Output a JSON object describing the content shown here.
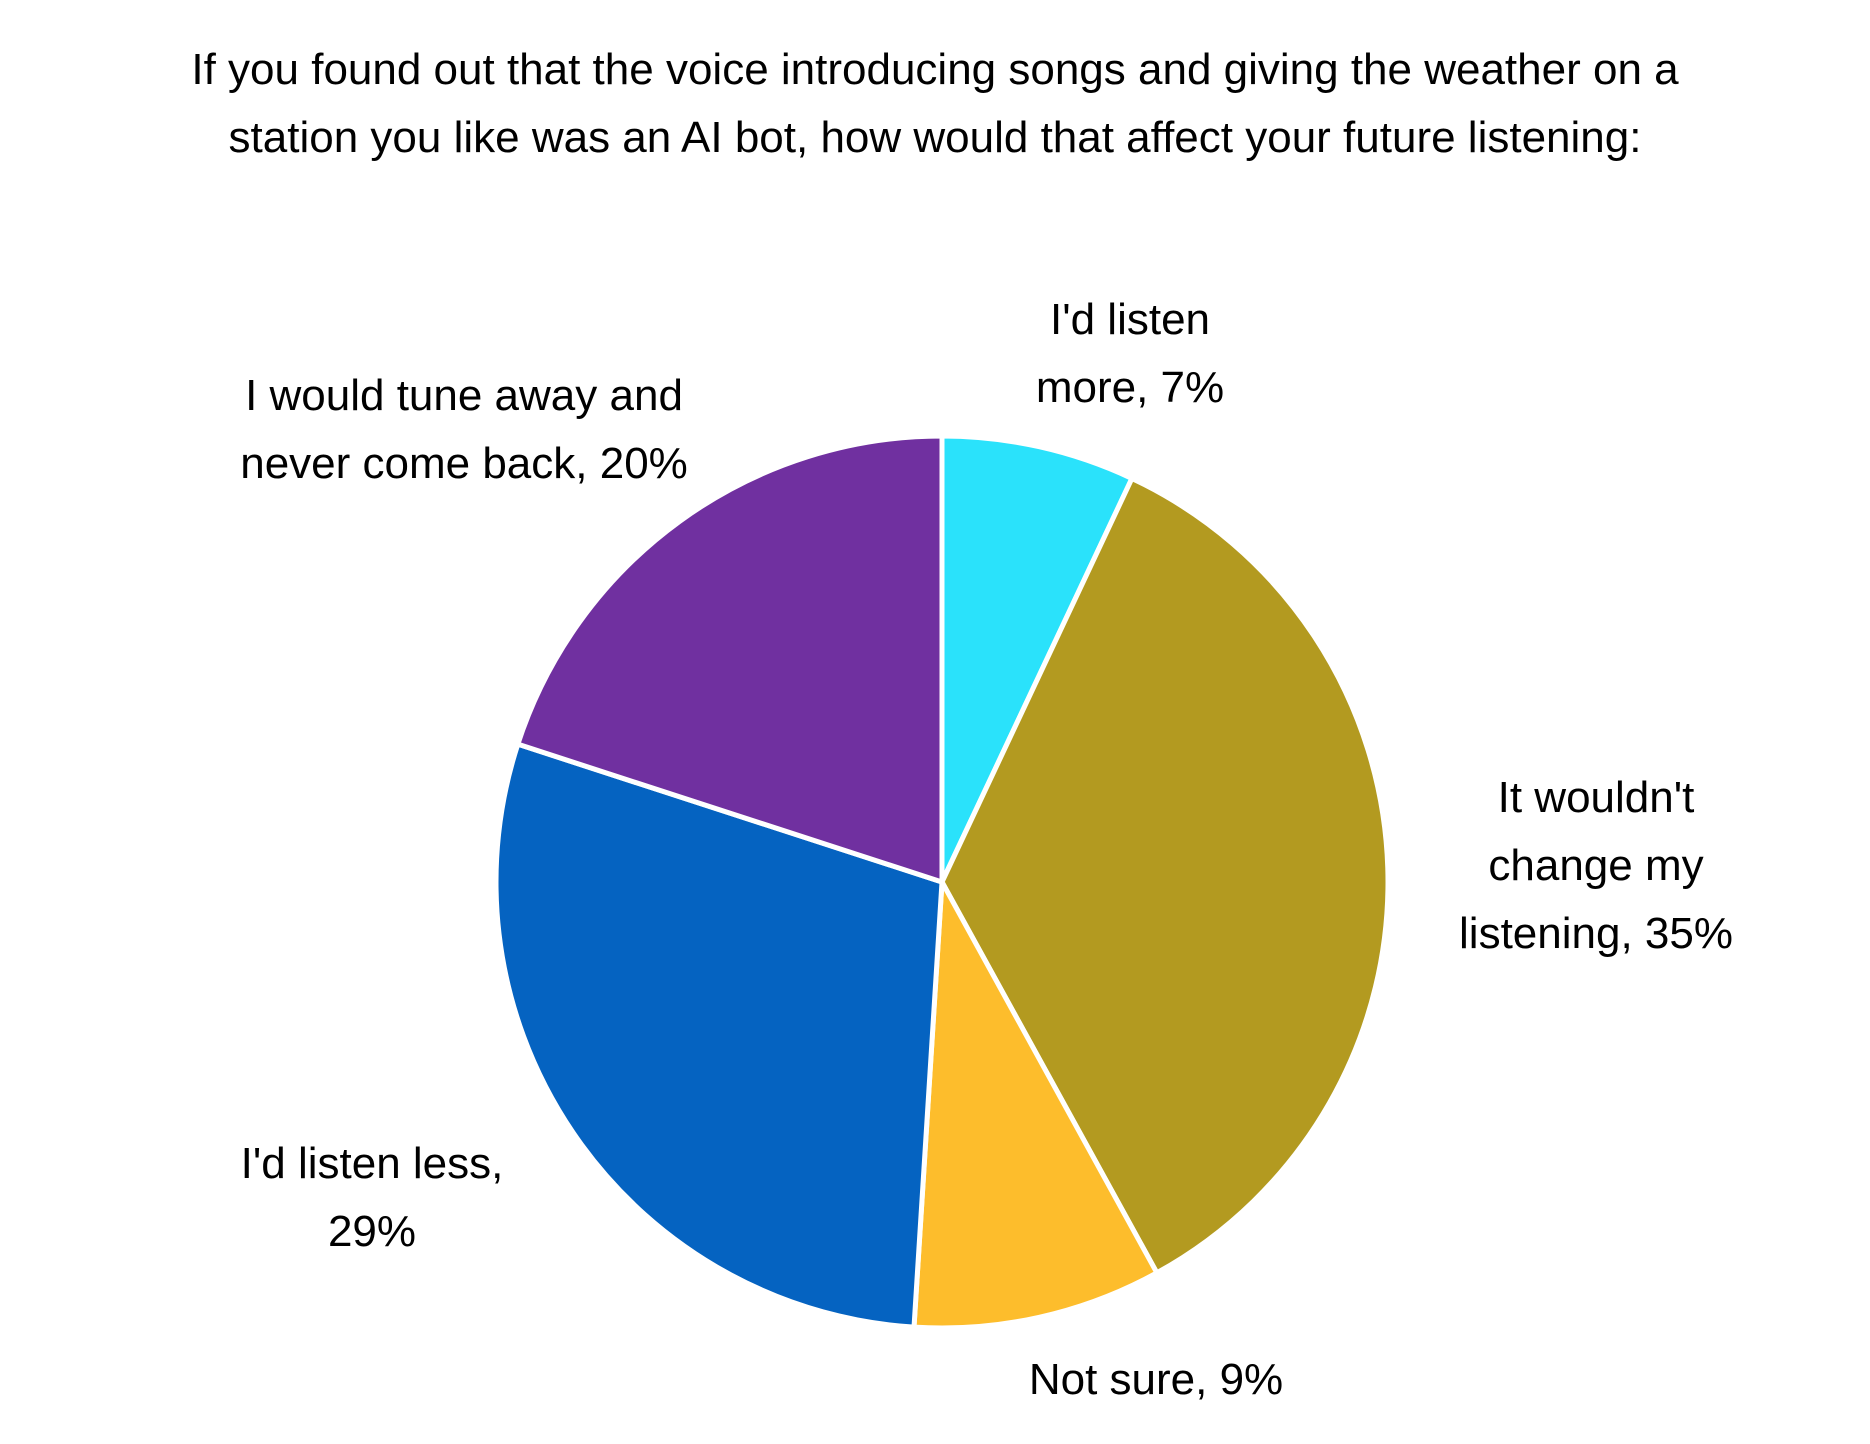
{
  "chart_data": {
    "type": "pie",
    "title": "If you found out that the voice introducing songs and giving the weather on a station you like was an AI bot, how would that affect your future listening:",
    "values": [
      7,
      35,
      9,
      29,
      20
    ],
    "value_labels": [
      "I'd listen more, 7%",
      "It wouldn't change my listening, 35%",
      "Not sure, 9%",
      "I'd listen less, 29%",
      "I would tune away and never come back, 20%"
    ],
    "colors": [
      "#2ae2fb",
      "#b39a20",
      "#fdbd2c",
      "#0563c1",
      "#7030a0"
    ]
  }
}
